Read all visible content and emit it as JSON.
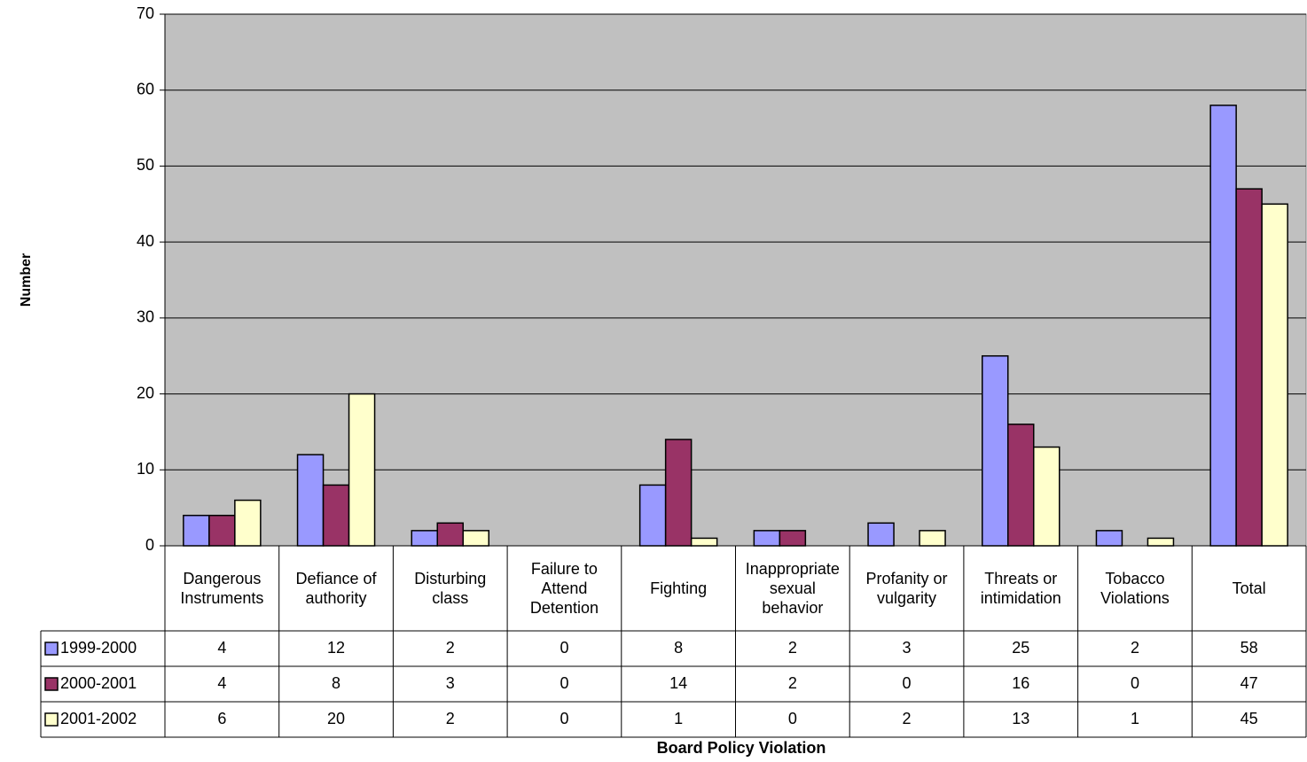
{
  "chart_data": {
    "type": "bar",
    "y_axis_label": "Number",
    "x_axis_label": "Board Policy Violation",
    "categories": [
      "Dangerous Instruments",
      "Defiance of authority",
      "Disturbing class",
      "Failure to Attend Detention",
      "Fighting",
      "Inappropriate sexual behavior",
      "Profanity or vulgarity",
      "Threats or intimidation",
      "Tobacco Violations",
      "Total"
    ],
    "series": [
      {
        "name": "1999-2000",
        "color": "#9999ff",
        "values": [
          4,
          12,
          2,
          0,
          8,
          2,
          3,
          25,
          2,
          58
        ]
      },
      {
        "name": "2000-2001",
        "color": "#993366",
        "values": [
          4,
          8,
          3,
          0,
          14,
          2,
          0,
          16,
          0,
          47
        ]
      },
      {
        "name": "2001-2002",
        "color": "#ffffcc",
        "values": [
          6,
          20,
          2,
          0,
          1,
          0,
          2,
          13,
          1,
          45
        ]
      }
    ],
    "ylim": [
      0,
      70
    ],
    "yticks": [
      0,
      10,
      20,
      30,
      40,
      50,
      60,
      70
    ],
    "grid": true,
    "plot_background": "#c0c0c0"
  }
}
